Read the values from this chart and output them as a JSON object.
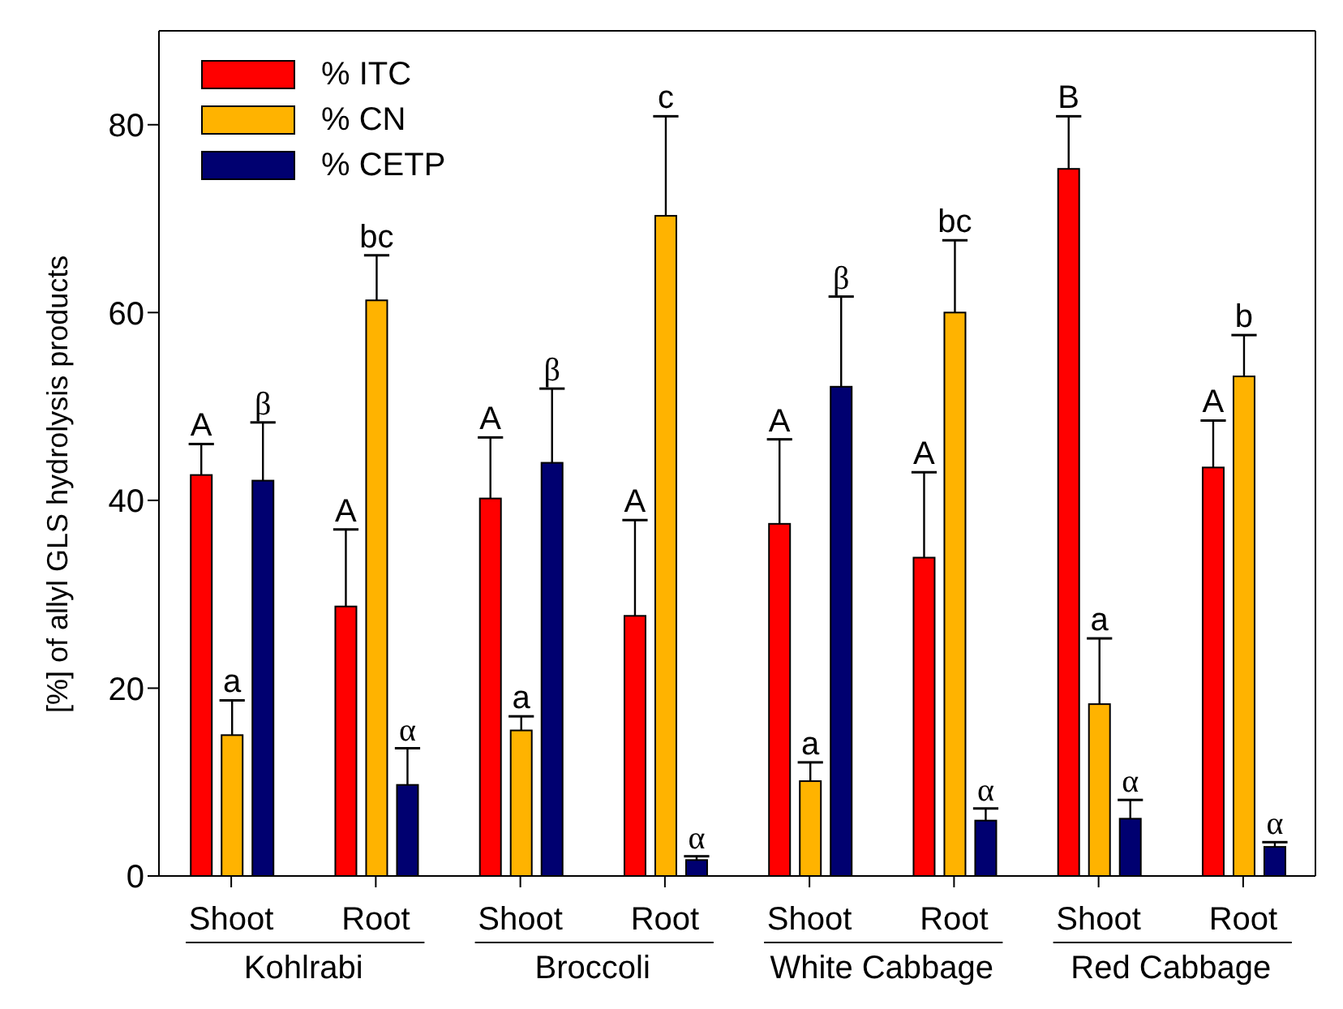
{
  "chart_data": {
    "type": "bar",
    "ylabel": "[%] of allyl GLS hydrolysis products",
    "categories": [
      "Shoot",
      "Root",
      "Shoot",
      "Root",
      "Shoot",
      "Root",
      "Shoot",
      "Root"
    ],
    "annotations": [
      "Kohlrabi",
      "Broccoli",
      "White Cabbage",
      "Red Cabbage"
    ],
    "series": [
      {
        "name": "% ITC",
        "color": "#ff0000",
        "values": [
          42.7,
          28.7,
          40.2,
          27.7,
          37.5,
          33.9,
          75.3,
          43.5
        ],
        "errors": [
          3.3,
          8.2,
          6.5,
          10.2,
          9.0,
          9.1,
          5.6,
          5.0
        ],
        "value_labels": [
          "A",
          "A",
          "A",
          "A",
          "A",
          "A",
          "B",
          "A"
        ]
      },
      {
        "name": "% CN",
        "color": "#ffb300",
        "values": [
          15.0,
          61.3,
          15.5,
          70.3,
          10.1,
          60.0,
          18.3,
          53.2
        ],
        "errors": [
          3.7,
          4.8,
          1.5,
          10.6,
          2.0,
          7.7,
          7.0,
          4.4
        ],
        "value_labels": [
          "a",
          "bc",
          "a",
          "c",
          "a",
          "bc",
          "a",
          "b"
        ]
      },
      {
        "name": "% CETP",
        "color": "#000070",
        "values": [
          42.1,
          9.7,
          44.0,
          1.7,
          52.1,
          5.9,
          6.1,
          3.1
        ],
        "errors": [
          6.2,
          3.9,
          7.9,
          0.4,
          9.6,
          1.3,
          2.0,
          0.5
        ],
        "value_labels": [
          "β",
          "α",
          "β",
          "α",
          "β",
          "α",
          "α",
          "α"
        ]
      }
    ],
    "ylim": [
      0,
      90
    ],
    "yticks": [
      0,
      20,
      40,
      60,
      80
    ],
    "grid": false,
    "legend": "top left"
  }
}
